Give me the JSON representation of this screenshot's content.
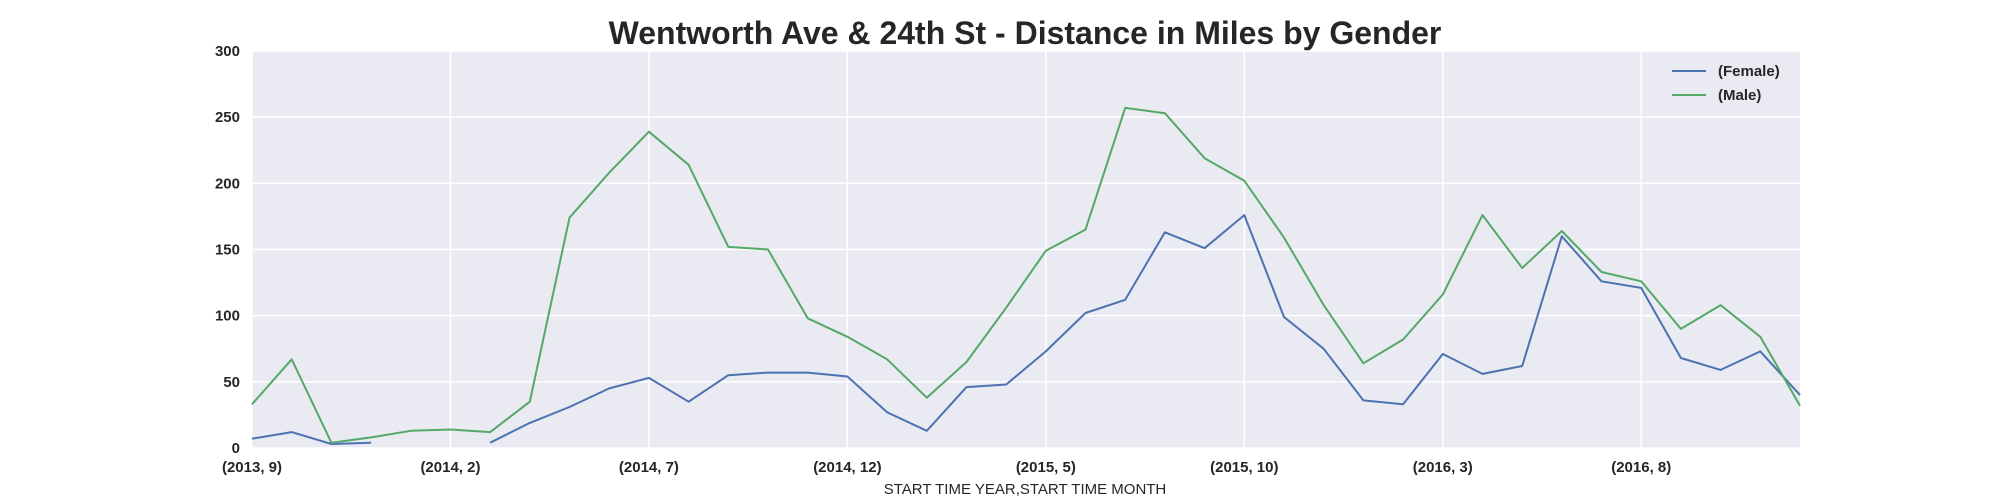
{
  "chart_data": {
    "type": "line",
    "title": "Wentworth Ave & 24th St - Distance in Miles by Gender",
    "xlabel": "START TIME YEAR,START TIME MONTH",
    "ylabel": "",
    "ylim": [
      0,
      300
    ],
    "yticks": [
      "0",
      "50",
      "100",
      "150",
      "200",
      "250",
      "300"
    ],
    "x": [
      "(2013, 9)",
      "(2013, 10)",
      "(2013, 11)",
      "(2013, 12)",
      "(2014, 1)",
      "(2014, 2)",
      "(2014, 3)",
      "(2014, 4)",
      "(2014, 5)",
      "(2014, 6)",
      "(2014, 7)",
      "(2014, 8)",
      "(2014, 9)",
      "(2014, 10)",
      "(2014, 11)",
      "(2014, 12)",
      "(2015, 1)",
      "(2015, 2)",
      "(2015, 3)",
      "(2015, 4)",
      "(2015, 5)",
      "(2015, 6)",
      "(2015, 7)",
      "(2015, 8)",
      "(2015, 9)",
      "(2015, 10)",
      "(2015, 11)",
      "(2015, 12)",
      "(2016, 1)",
      "(2016, 2)",
      "(2016, 3)",
      "(2016, 4)",
      "(2016, 5)",
      "(2016, 6)",
      "(2016, 7)",
      "(2016, 8)",
      "(2016, 9)",
      "(2016, 10)",
      "(2016, 11)",
      "(2016, 12)"
    ],
    "xtick_labels": [
      "(2013, 9)",
      "(2014, 2)",
      "(2014, 7)",
      "(2014, 12)",
      "(2015, 5)",
      "(2015, 10)",
      "(2016, 3)",
      "(2016, 8)"
    ],
    "xtick_index": [
      0,
      5,
      10,
      15,
      20,
      25,
      30,
      35
    ],
    "grid": true,
    "legend": "top-right",
    "series": [
      {
        "name": "(Female)",
        "color": "#4c72b0",
        "values": [
          7,
          12,
          3,
          4,
          null,
          null,
          4,
          19,
          31,
          45,
          53,
          35,
          55,
          57,
          57,
          54,
          27,
          13,
          46,
          48,
          73,
          102,
          112,
          163,
          151,
          176,
          99,
          75,
          36,
          33,
          71,
          56,
          62,
          160,
          126,
          121,
          68,
          59,
          73,
          40
        ]
      },
      {
        "name": "(Male)",
        "color": "#55a868",
        "values": [
          33,
          67,
          4,
          8,
          13,
          14,
          12,
          35,
          174,
          208,
          239,
          214,
          152,
          150,
          98,
          84,
          67,
          38,
          65,
          106,
          149,
          165,
          257,
          253,
          219,
          202,
          159,
          108,
          64,
          82,
          116,
          176,
          136,
          164,
          133,
          126,
          90,
          108,
          84,
          32
        ]
      }
    ]
  }
}
